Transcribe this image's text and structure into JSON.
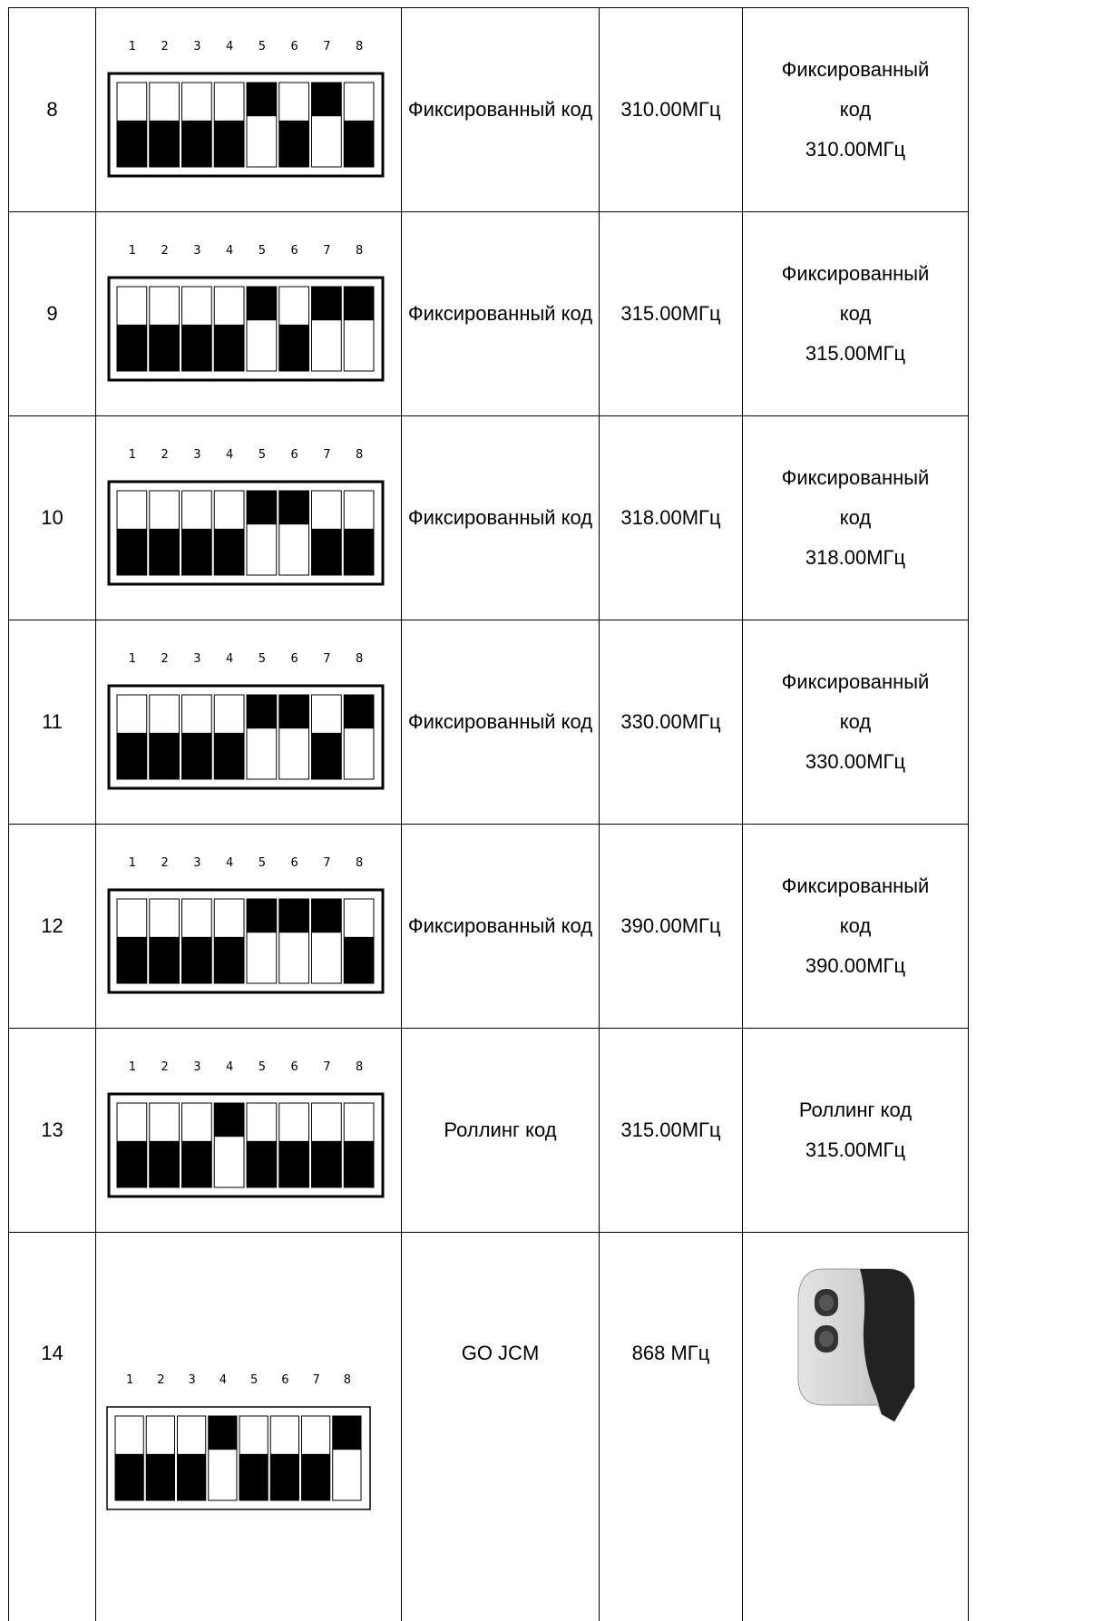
{
  "table": {
    "switch_labels": [
      "1",
      "2",
      "3",
      "4",
      "5",
      "6",
      "7",
      "8"
    ],
    "rows": [
      {
        "number": "8",
        "type": "Фиксированный код",
        "frequency": "310.00МГц",
        "summary": [
          "Фиксированный",
          "код",
          "310.00МГц"
        ]
      },
      {
        "number": "9",
        "type": "Фиксированный код",
        "frequency": "315.00МГц",
        "summary": [
          "Фиксированный",
          "код",
          "315.00МГц"
        ]
      },
      {
        "number": "10",
        "type": "Фиксированный код",
        "frequency": "318.00МГц",
        "summary": [
          "Фиксированный",
          "код",
          "318.00МГц"
        ]
      },
      {
        "number": "11",
        "type": "Фиксированный код",
        "frequency": "330.00МГц",
        "summary": [
          "Фиксированный",
          "код",
          "330.00МГц"
        ]
      },
      {
        "number": "12",
        "type": "Фиксированный код",
        "frequency": "390.00МГц",
        "summary": [
          "Фиксированный",
          "код",
          "390.00МГц"
        ]
      },
      {
        "number": "13",
        "type": "Роллинг код",
        "frequency": "315.00МГц",
        "summary": [
          "Роллинг код",
          "315.00МГц"
        ]
      },
      {
        "number": "14",
        "type": "GO JCM",
        "frequency": "868 МГц"
      }
    ]
  }
}
